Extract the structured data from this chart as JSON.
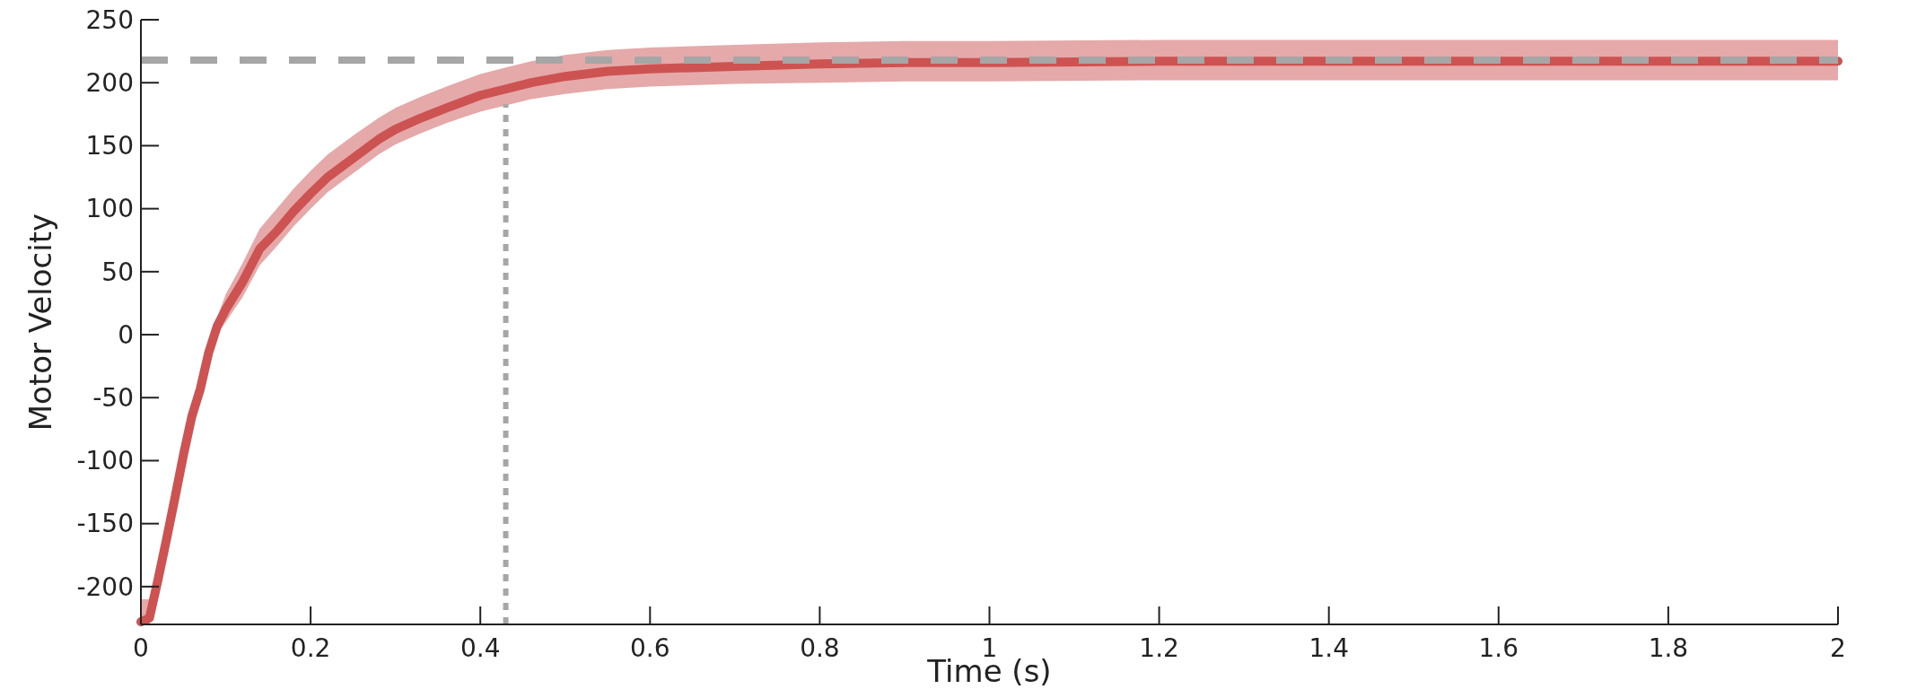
{
  "chart_data": {
    "type": "line",
    "xlabel": "Time (s)",
    "ylabel": "Motor Velocity",
    "x": [
      0,
      0.01,
      0.02,
      0.03,
      0.04,
      0.05,
      0.06,
      0.07,
      0.08,
      0.09,
      0.1,
      0.12,
      0.14,
      0.16,
      0.18,
      0.2,
      0.22,
      0.25,
      0.28,
      0.3,
      0.33,
      0.36,
      0.4,
      0.43,
      0.46,
      0.5,
      0.55,
      0.6,
      0.7,
      0.8,
      0.9,
      1,
      1.2,
      1.4,
      1.6,
      1.8,
      2
    ],
    "series": [
      {
        "color": "#cd5252",
        "values": [
          -228,
          -225,
          -195,
          -163,
          -130,
          -96,
          -65,
          -43,
          -14,
          7,
          20,
          42,
          68,
          82,
          98,
          112,
          125,
          140,
          155,
          163,
          172,
          180,
          190,
          195,
          200,
          205,
          209,
          211,
          213,
          215,
          216,
          216,
          217,
          217,
          217,
          217,
          217
        ],
        "lower": [
          -230,
          -230,
          -200,
          -168,
          -135,
          -101,
          -70,
          -48,
          -20,
          0,
          10,
          30,
          55,
          70,
          86,
          100,
          113,
          128,
          143,
          151,
          160,
          168,
          177,
          182,
          187,
          191,
          195,
          197,
          199,
          200,
          201,
          201,
          202,
          202,
          202,
          202,
          202
        ],
        "upper": [
          -210,
          -210,
          -190,
          -158,
          -125,
          -91,
          -60,
          -38,
          -8,
          14,
          32,
          57,
          84,
          100,
          116,
          130,
          143,
          158,
          172,
          180,
          189,
          197,
          207,
          212,
          217,
          222,
          226,
          228,
          230,
          232,
          233,
          233,
          234,
          234,
          234,
          234,
          234
        ]
      }
    ],
    "xlim": [
      0,
      2
    ],
    "xticks": [
      0,
      0.2,
      0.4,
      0.6,
      0.8,
      1,
      1.2,
      1.4,
      1.6,
      1.8,
      2
    ],
    "ylim": [
      -230,
      250
    ],
    "yticks": [
      -200,
      -150,
      -100,
      -50,
      0,
      50,
      100,
      150,
      200,
      250
    ],
    "grid": false,
    "marker": "none",
    "line_style": "solid",
    "ref_lines": [
      {
        "axis": "y",
        "value": 218,
        "color": "#a6a6a6",
        "line_style": "dashed"
      },
      {
        "axis": "x",
        "value": 0.43,
        "color": "#a6a6a6",
        "line_style": "dotted"
      }
    ]
  }
}
